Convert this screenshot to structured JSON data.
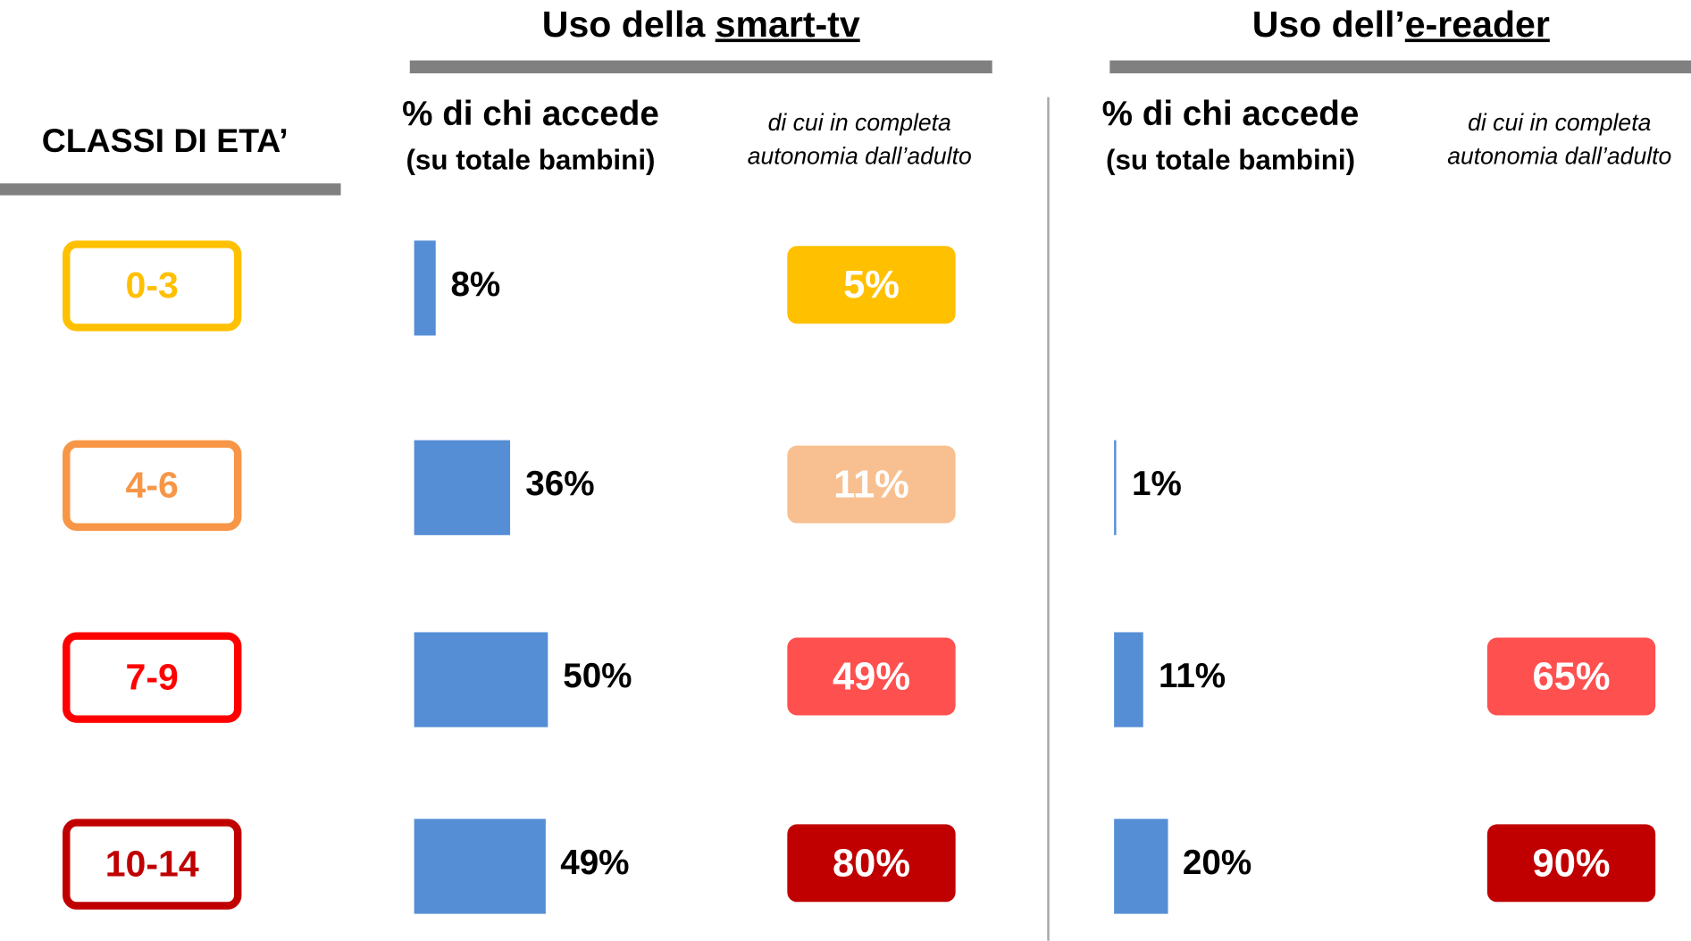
{
  "age_header": "CLASSI DI ETA’",
  "age_classes": [
    "0-3",
    "4-6",
    "7-9",
    "10-14"
  ],
  "age_colors": [
    "#ffc000",
    "#f79646",
    "#ff0000",
    "#c00000"
  ],
  "chart_data": [
    {
      "type": "bar",
      "title_parts": [
        "Uso della ",
        "smart-tv"
      ],
      "series": [
        {
          "name": "% di chi accede",
          "note": "(su totale bambini)",
          "color": "#558ed5",
          "values": [
            8,
            36,
            50,
            49
          ],
          "value_labels": [
            "8%",
            "36%",
            "50%",
            "49%"
          ]
        },
        {
          "name": "di cui in completa",
          "note": "autonomia dall’adulto",
          "colors": [
            "#ffc000",
            "#f8c090",
            "#ff5050",
            "#c00000"
          ],
          "values": [
            5,
            11,
            49,
            80
          ],
          "value_labels": [
            "5%",
            "11%",
            "49%",
            "80%"
          ]
        }
      ]
    },
    {
      "type": "bar",
      "title_parts": [
        "Uso dell’",
        "e-reader"
      ],
      "series": [
        {
          "name": "% di chi accede",
          "note": "(su totale bambini)",
          "color": "#558ed5",
          "values": [
            null,
            1,
            11,
            20
          ],
          "value_labels": [
            null,
            "1%",
            "11%",
            "20%"
          ]
        },
        {
          "name": "di cui in completa",
          "note": "autonomia dall’adulto",
          "colors": [
            "#ffc000",
            "#f8c090",
            "#ff5050",
            "#c00000"
          ],
          "values": [
            null,
            null,
            65,
            90
          ],
          "value_labels": [
            null,
            null,
            "65%",
            "90%"
          ]
        }
      ]
    }
  ]
}
